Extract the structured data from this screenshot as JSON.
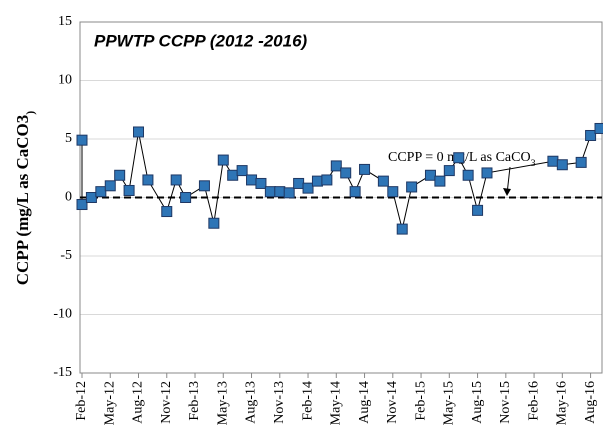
{
  "chart_data": {
    "type": "line",
    "title": "PPWTP CCPP (2012 -2016)",
    "y_label": "CCPP (mg/L as CaCO3)",
    "annotation": "CCPP = 0 mg/L as CaCO3",
    "reference_line": 0,
    "x": [
      "2012-02",
      "2012-02",
      "2012-03",
      "2012-04",
      "2012-05",
      "2012-06",
      "2012-07",
      "2012-08",
      "2012-09",
      "2012-11",
      "2012-12",
      "2013-01",
      "2013-03",
      "2013-04",
      "2013-05",
      "2013-06",
      "2013-07",
      "2013-08",
      "2013-09",
      "2013-10",
      "2013-11",
      "2013-12",
      "2014-01",
      "2014-02",
      "2014-03",
      "2014-04",
      "2014-05",
      "2014-06",
      "2014-07",
      "2014-08",
      "2014-10",
      "2014-11",
      "2014-12",
      "2015-01",
      "2015-03",
      "2015-04",
      "2015-05",
      "2015-06",
      "2015-07",
      "2015-08",
      "2015-09",
      "2016-04",
      "2016-05",
      "2016-07",
      "2016-08",
      "2016-09"
    ],
    "series": [
      {
        "name": "CCPP",
        "color": "#2e75b6",
        "values": [
          4.9,
          -0.6,
          0.0,
          0.5,
          1.0,
          1.9,
          0.6,
          5.6,
          1.5,
          -1.2,
          1.5,
          0.0,
          1.0,
          -2.2,
          3.2,
          1.9,
          2.3,
          1.5,
          1.2,
          0.5,
          0.5,
          0.4,
          1.2,
          0.8,
          1.4,
          1.5,
          2.7,
          2.1,
          0.5,
          2.4,
          1.4,
          0.5,
          -2.7,
          0.9,
          1.9,
          1.4,
          2.3,
          3.4,
          1.9,
          -1.1,
          2.1,
          3.1,
          2.8,
          3.0,
          5.3,
          5.9
        ]
      }
    ],
    "xlim": [
      "2012-02",
      "2016-09"
    ],
    "xticks": [
      {
        "value": "2012-02",
        "label": "Feb-12"
      },
      {
        "value": "2012-05",
        "label": "May-12"
      },
      {
        "value": "2012-08",
        "label": "Aug-12"
      },
      {
        "value": "2012-11",
        "label": "Nov-12"
      },
      {
        "value": "2013-02",
        "label": "Feb-13"
      },
      {
        "value": "2013-05",
        "label": "May-13"
      },
      {
        "value": "2013-08",
        "label": "Aug-13"
      },
      {
        "value": "2013-11",
        "label": "Nov-13"
      },
      {
        "value": "2014-02",
        "label": "Feb-14"
      },
      {
        "value": "2014-05",
        "label": "May-14"
      },
      {
        "value": "2014-08",
        "label": "Aug-14"
      },
      {
        "value": "2014-11",
        "label": "Nov-14"
      },
      {
        "value": "2015-02",
        "label": "Feb-15"
      },
      {
        "value": "2015-05",
        "label": "May-15"
      },
      {
        "value": "2015-08",
        "label": "Aug-15"
      },
      {
        "value": "2015-11",
        "label": "Nov-15"
      },
      {
        "value": "2016-02",
        "label": "Feb-16"
      },
      {
        "value": "2016-05",
        "label": "May-16"
      },
      {
        "value": "2016-08",
        "label": "Aug-16"
      }
    ],
    "ylim": [
      -15,
      15
    ],
    "yticks": [
      -15,
      -10,
      -5,
      0,
      5,
      10,
      15
    ],
    "grid": true
  }
}
